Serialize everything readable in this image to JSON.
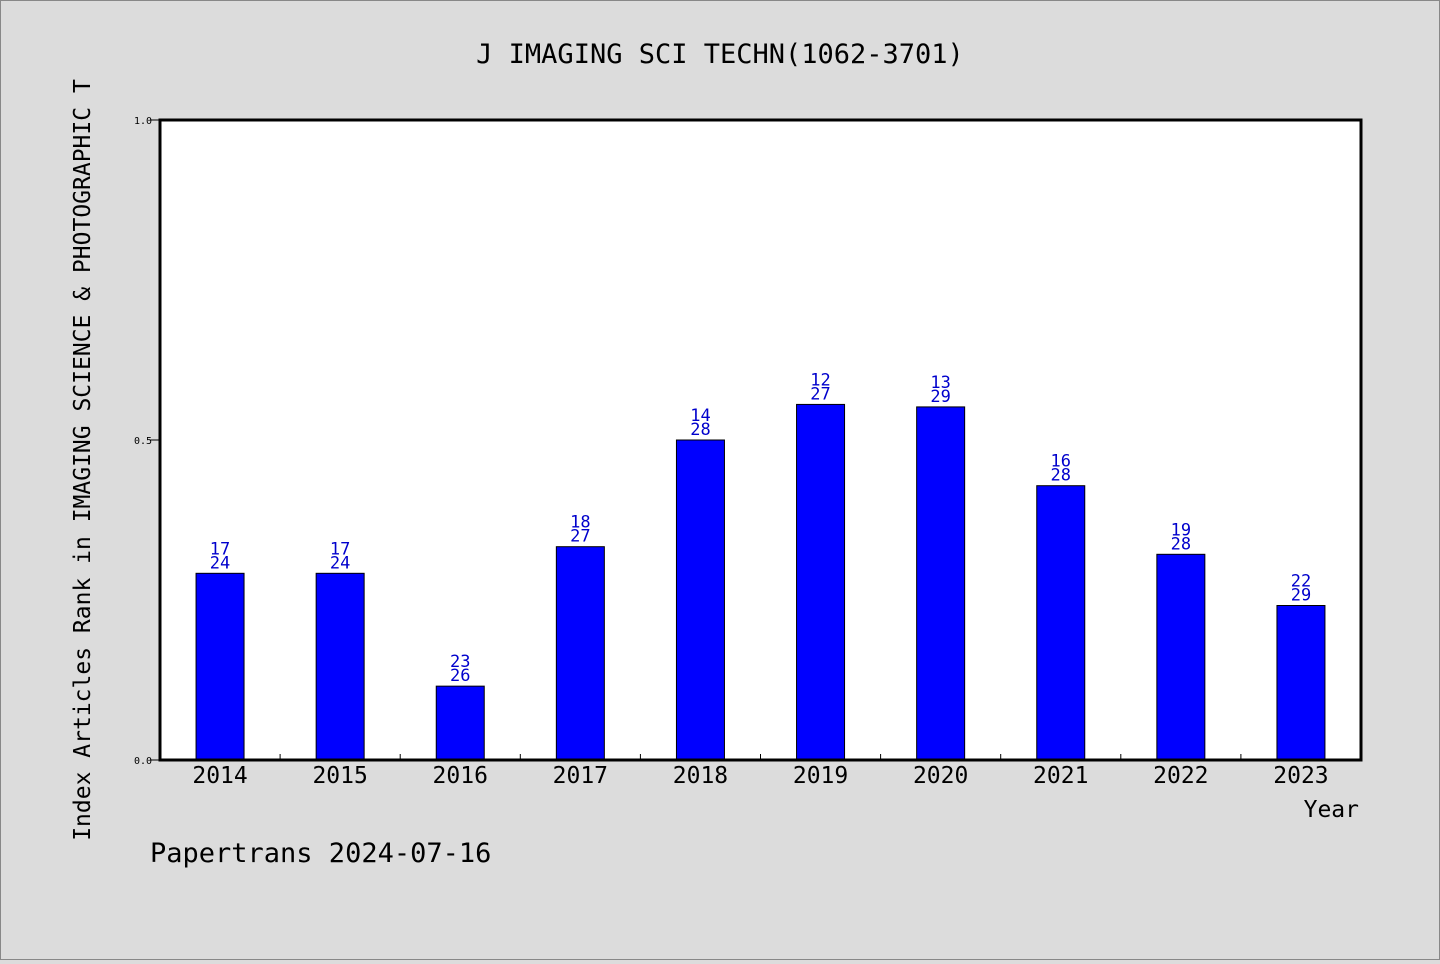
{
  "chart_data": {
    "type": "bar",
    "title": "J IMAGING SCI TECHN(1062-3701)",
    "xlabel": "Year",
    "ylabel": "Index Articles Rank in IMAGING SCIENCE & PHOTOGRAPHIC T",
    "footer": "Papertrans 2024-07-16",
    "categories": [
      "2014",
      "2015",
      "2016",
      "2017",
      "2018",
      "2019",
      "2020",
      "2021",
      "2022",
      "2023"
    ],
    "values": [
      0.2917,
      0.2917,
      0.1154,
      0.3333,
      0.5,
      0.5556,
      0.5517,
      0.4286,
      0.3214,
      0.2414
    ],
    "labels_top": [
      "17",
      "17",
      "23",
      "18",
      "14",
      "12",
      "13",
      "16",
      "19",
      "22"
    ],
    "labels_bottom": [
      "24",
      "24",
      "26",
      "27",
      "28",
      "27",
      "29",
      "28",
      "28",
      "29"
    ],
    "ylim": [
      0,
      1.0
    ],
    "yticks": [
      "0.0",
      "0.5",
      "1.0"
    ],
    "grid": false,
    "bar_color": "#0000ff",
    "label_color": "#0000cc",
    "background_color": "#dcdcdc",
    "plot_background": "#ffffff"
  }
}
